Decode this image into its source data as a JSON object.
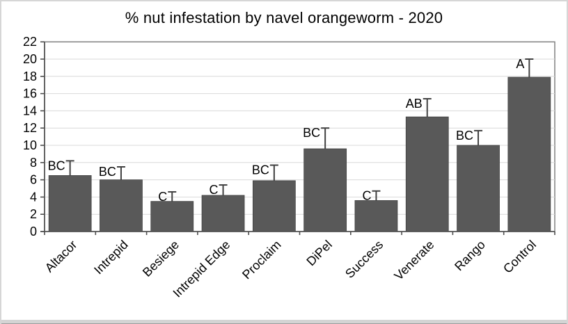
{
  "chart_data": {
    "type": "bar",
    "title": "% nut infestation by navel orangeworm - 2020",
    "categories": [
      "Altacor",
      "Intrepid",
      "Besiege",
      "Intrepid Edge",
      "Proclaim",
      "DiPel",
      "Success",
      "Venerate",
      "Rango",
      "Control"
    ],
    "values": [
      6.5,
      6.0,
      3.5,
      4.2,
      5.9,
      9.6,
      3.6,
      13.3,
      10.0,
      17.9
    ],
    "error_upper": [
      1.7,
      1.5,
      1.1,
      1.2,
      1.8,
      2.4,
      1.1,
      2.1,
      1.7,
      2.1
    ],
    "sig_letters": [
      "BC",
      "BC",
      "C",
      "C",
      "BC",
      "BC",
      "C",
      "AB",
      "BC",
      "A"
    ],
    "xlabel": "",
    "ylabel": "",
    "ylim": [
      0,
      22
    ],
    "ytick_step": 2,
    "ytick_labels": [
      "0",
      "2",
      "4",
      "6",
      "8",
      "10",
      "12",
      "14",
      "16",
      "18",
      "20",
      "22"
    ],
    "xtick_label_rotation": -45,
    "grid": true,
    "legend": false,
    "colors": {
      "bar_fill": "#595959",
      "bar_stroke": "#404040",
      "error_bar": "#404040",
      "gridline": "#d9d9d9",
      "axis_line": "#4d4d4d",
      "plot_border": "#808080",
      "text": "#000000",
      "frame": "#d6d6d6"
    }
  }
}
